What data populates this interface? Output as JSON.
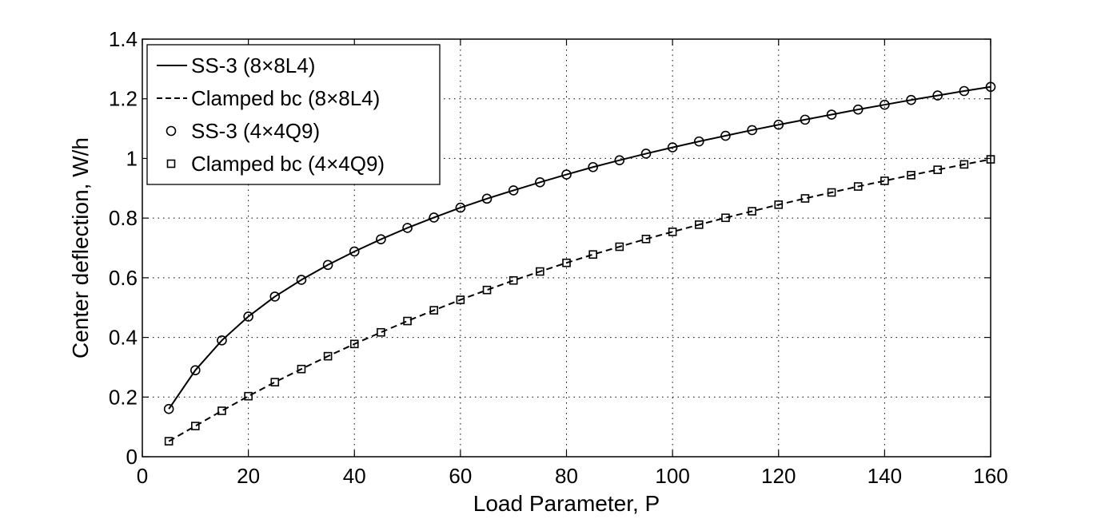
{
  "chart_data": {
    "type": "line",
    "xlabel": "Load Parameter, P",
    "ylabel": "Center deflection, W/h",
    "xlim": [
      0,
      160
    ],
    "ylim": [
      0,
      1.4
    ],
    "xticks": [
      "0",
      "20",
      "40",
      "60",
      "80",
      "100",
      "120",
      "140",
      "160"
    ],
    "yticks": [
      "0",
      "0.2",
      "0.4",
      "0.6",
      "0.8",
      "1",
      "1.2",
      "1.4"
    ],
    "grid": true,
    "legend_position": "top-left",
    "x": [
      5,
      10,
      15,
      20,
      25,
      30,
      35,
      40,
      45,
      50,
      55,
      60,
      65,
      70,
      75,
      80,
      85,
      90,
      95,
      100,
      105,
      110,
      115,
      120,
      125,
      130,
      135,
      140,
      145,
      150,
      155,
      160
    ],
    "series": [
      {
        "name": "SS-3 (8×8L4)",
        "style": "solid-line",
        "values": [
          0.16,
          0.29,
          0.39,
          0.47,
          0.537,
          0.593,
          0.643,
          0.688,
          0.729,
          0.767,
          0.802,
          0.835,
          0.865,
          0.893,
          0.92,
          0.946,
          0.971,
          0.994,
          1.016,
          1.037,
          1.057,
          1.076,
          1.095,
          1.113,
          1.13,
          1.147,
          1.164,
          1.18,
          1.196,
          1.211,
          1.226,
          1.24
        ]
      },
      {
        "name": "Clamped bc (8×8L4)",
        "style": "dashed-line",
        "values": [
          0.052,
          0.103,
          0.154,
          0.203,
          0.25,
          0.294,
          0.337,
          0.378,
          0.417,
          0.455,
          0.491,
          0.526,
          0.559,
          0.591,
          0.621,
          0.65,
          0.678,
          0.704,
          0.73,
          0.754,
          0.778,
          0.801,
          0.823,
          0.845,
          0.866,
          0.886,
          0.906,
          0.925,
          0.944,
          0.962,
          0.98,
          0.997
        ]
      },
      {
        "name": "SS-3 (4×4Q9)",
        "style": "circle-markers",
        "values": [
          0.16,
          0.29,
          0.39,
          0.47,
          0.537,
          0.593,
          0.643,
          0.688,
          0.729,
          0.767,
          0.802,
          0.835,
          0.865,
          0.893,
          0.92,
          0.946,
          0.971,
          0.994,
          1.016,
          1.037,
          1.057,
          1.076,
          1.095,
          1.113,
          1.13,
          1.147,
          1.164,
          1.18,
          1.196,
          1.211,
          1.226,
          1.24
        ]
      },
      {
        "name": "Clamped bc (4×4Q9)",
        "style": "square-markers",
        "values": [
          0.052,
          0.103,
          0.154,
          0.203,
          0.25,
          0.294,
          0.337,
          0.378,
          0.417,
          0.455,
          0.491,
          0.526,
          0.559,
          0.591,
          0.621,
          0.65,
          0.678,
          0.704,
          0.73,
          0.754,
          0.778,
          0.801,
          0.823,
          0.845,
          0.866,
          0.886,
          0.906,
          0.925,
          0.944,
          0.962,
          0.98,
          0.997
        ]
      }
    ],
    "colors": {
      "line": "#000000",
      "grid": "#000000",
      "background": "#ffffff"
    }
  }
}
